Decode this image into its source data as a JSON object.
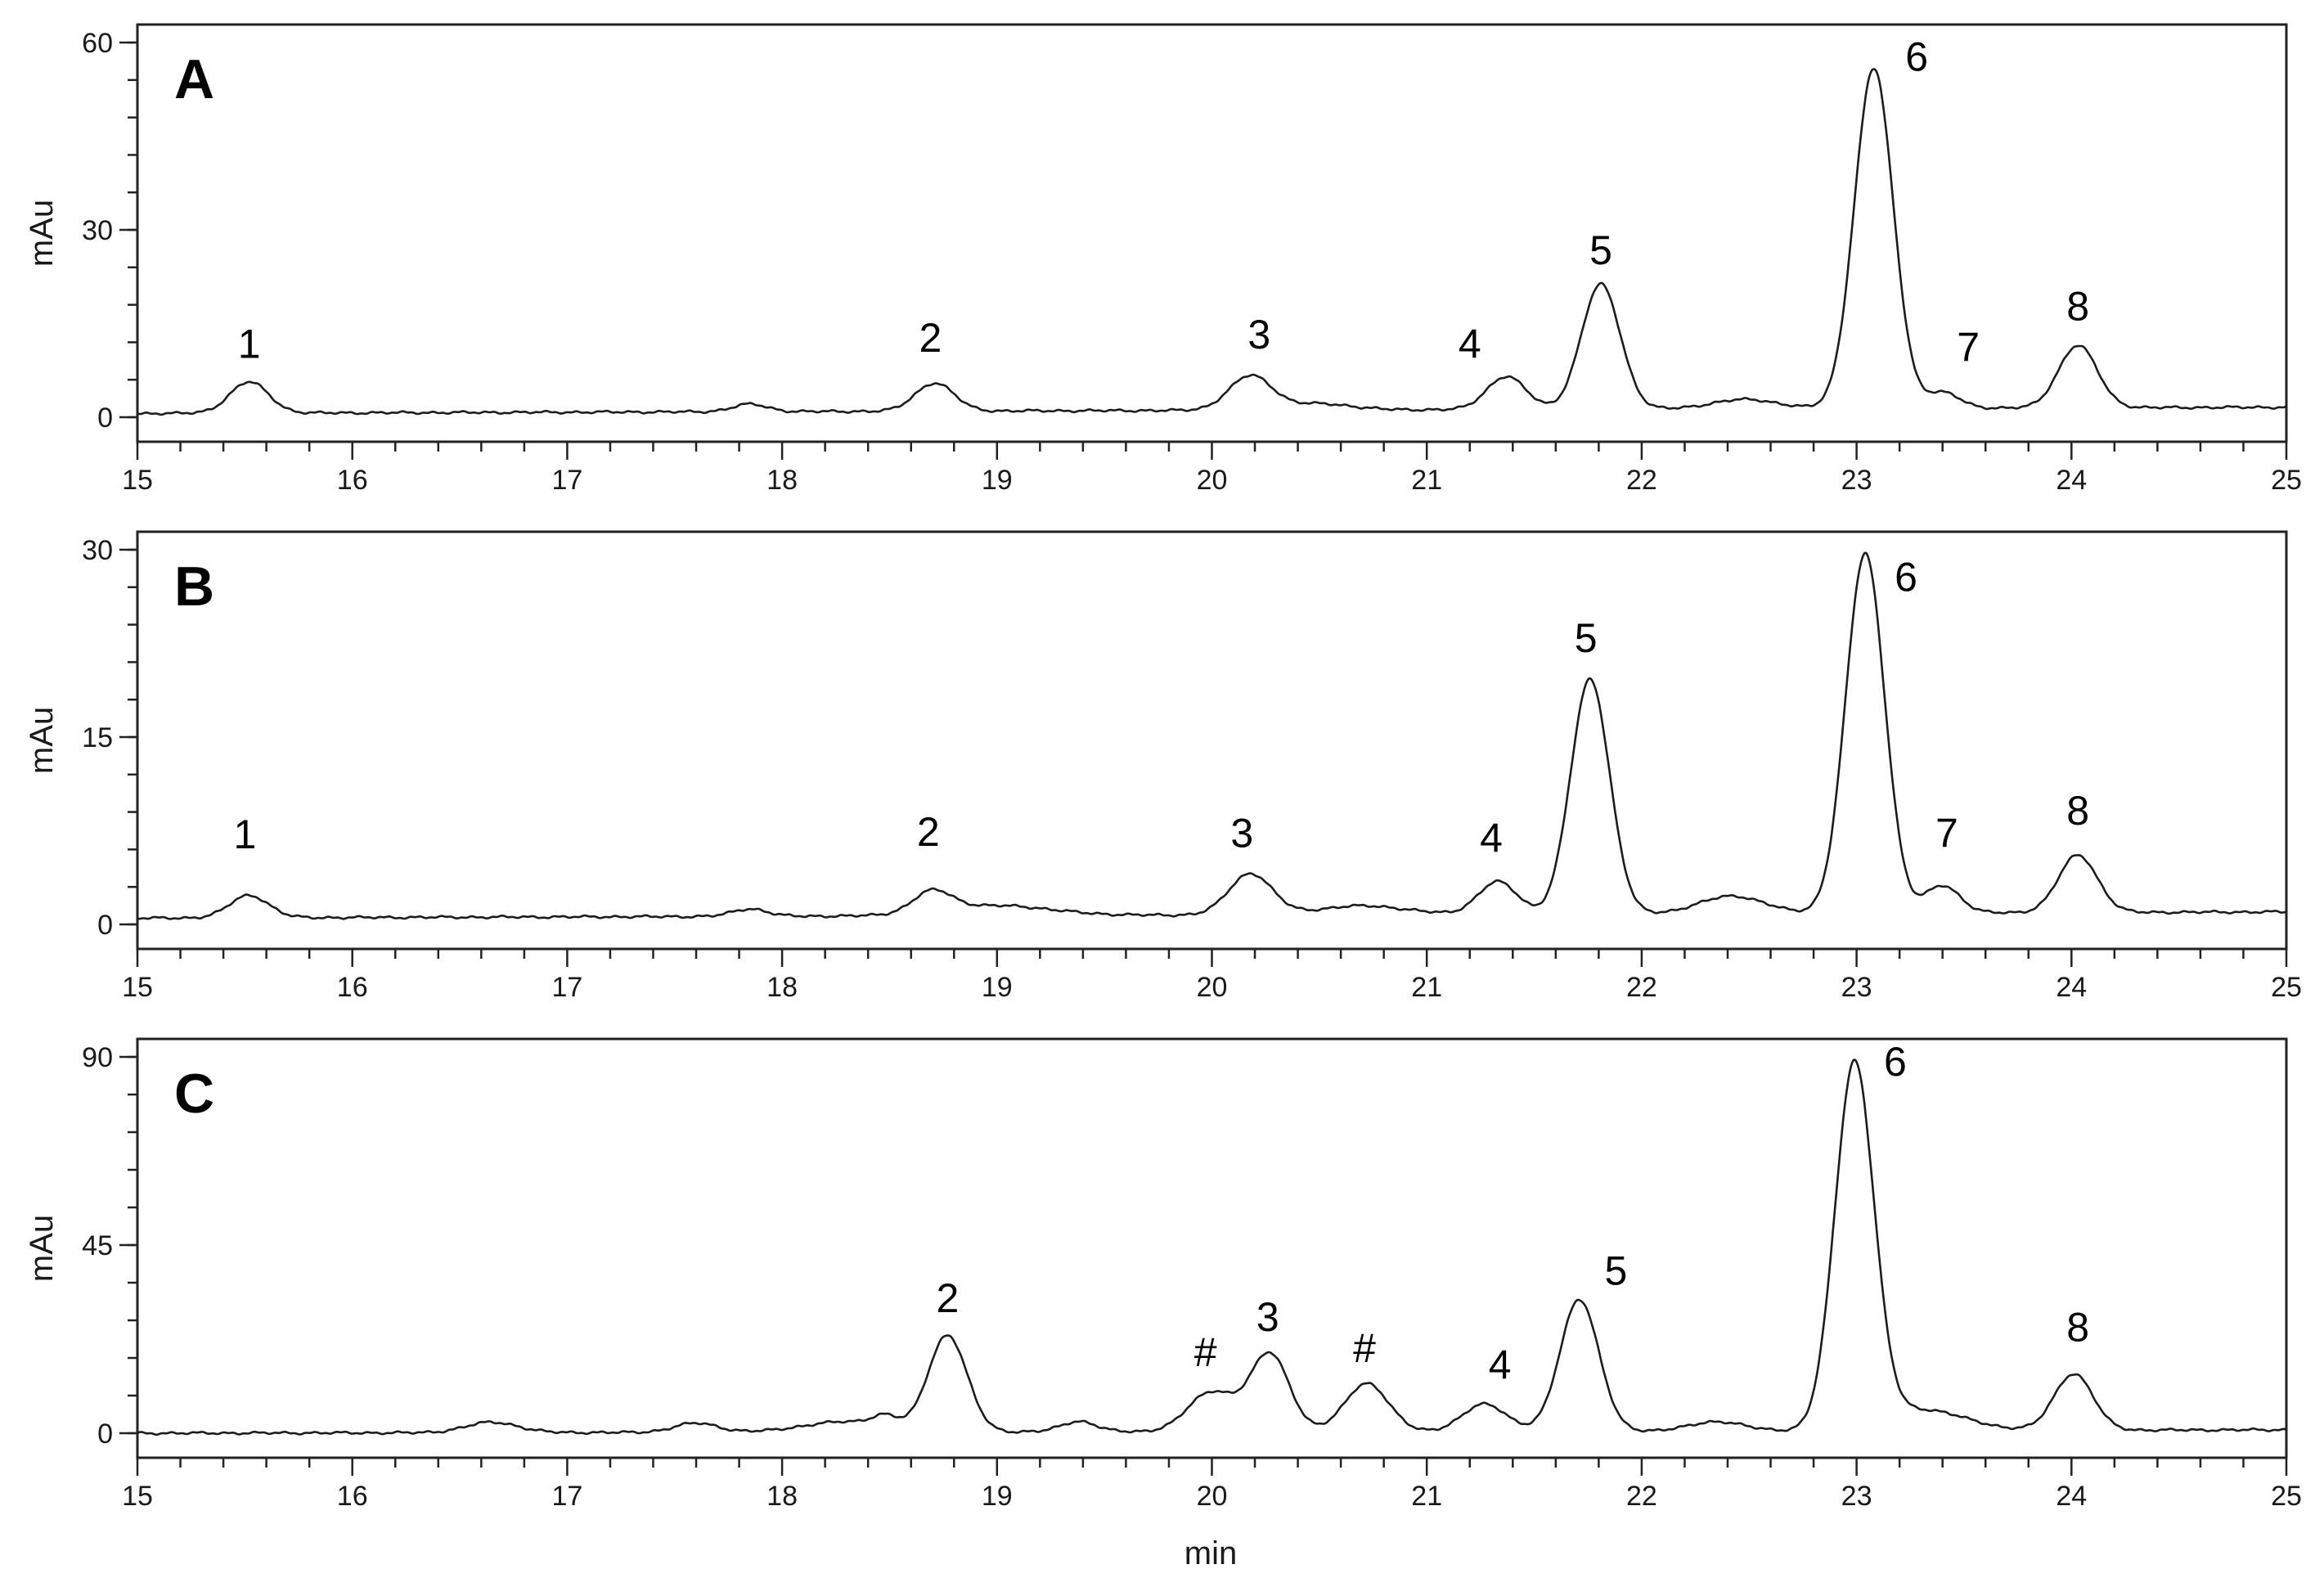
{
  "figure": {
    "x_axis_title": "min"
  },
  "chart_data": [
    {
      "type": "line",
      "panel": "A",
      "xlabel": "min",
      "ylabel": "mAu",
      "xlim": [
        15,
        25
      ],
      "ylim": [
        0,
        60
      ],
      "x_ticks": [
        15,
        16,
        17,
        18,
        19,
        20,
        21,
        22,
        23,
        24,
        25
      ],
      "y_ticks": [
        0,
        30,
        60
      ],
      "baseline": {
        "start": 0.6,
        "end": 1.6
      },
      "peaks": [
        {
          "label": "1",
          "x": 15.52,
          "height": 5.0,
          "width": 0.09
        },
        {
          "x": 17.85,
          "height": 1.2,
          "width": 0.08
        },
        {
          "label": "2",
          "x": 18.71,
          "height": 4.5,
          "width": 0.09
        },
        {
          "label": "3",
          "x": 20.18,
          "height": 5.5,
          "width": 0.1
        },
        {
          "x": 20.5,
          "height": 1.0,
          "width": 0.15
        },
        {
          "label": "4",
          "x": 21.37,
          "height": 5.3,
          "width": 0.09
        },
        {
          "label": "5",
          "x": 21.81,
          "height": 20.0,
          "width": 0.09
        },
        {
          "x": 22.48,
          "height": 1.5,
          "width": 0.15
        },
        {
          "label": "6",
          "x": 23.08,
          "height": 54.5,
          "width": 0.09
        },
        {
          "label": "7",
          "x": 23.4,
          "height": 2.5,
          "width": 0.08
        },
        {
          "label": "8",
          "x": 24.03,
          "height": 10.0,
          "width": 0.09
        }
      ],
      "annotations": [
        {
          "text": "1",
          "x": 15.52,
          "y": 9.5
        },
        {
          "text": "2",
          "x": 18.69,
          "y": 10.5
        },
        {
          "text": "3",
          "x": 20.22,
          "y": 11.0
        },
        {
          "text": "4",
          "x": 21.2,
          "y": 9.5
        },
        {
          "text": "5",
          "x": 21.81,
          "y": 24.5
        },
        {
          "text": "6",
          "x": 23.28,
          "y": 55.5
        },
        {
          "text": "7",
          "x": 23.52,
          "y": 9.0
        },
        {
          "text": "8",
          "x": 24.03,
          "y": 15.5
        }
      ]
    },
    {
      "type": "line",
      "panel": "B",
      "xlabel": "min",
      "ylabel": "mAu",
      "xlim": [
        15,
        25
      ],
      "ylim": [
        0,
        30
      ],
      "x_ticks": [
        15,
        16,
        17,
        18,
        19,
        20,
        21,
        22,
        23,
        24,
        25
      ],
      "y_ticks": [
        0,
        15,
        30
      ],
      "baseline": {
        "start": 0.5,
        "end": 1.0
      },
      "peaks": [
        {
          "label": "1",
          "x": 15.52,
          "height": 1.8,
          "width": 0.09
        },
        {
          "x": 17.85,
          "height": 0.6,
          "width": 0.08
        },
        {
          "label": "2",
          "x": 18.7,
          "height": 1.7,
          "width": 0.09
        },
        {
          "x": 19.0,
          "height": 0.8,
          "width": 0.25
        },
        {
          "label": "3",
          "x": 20.18,
          "height": 3.3,
          "width": 0.1
        },
        {
          "x": 20.7,
          "height": 0.7,
          "width": 0.2
        },
        {
          "label": "4",
          "x": 21.33,
          "height": 2.6,
          "width": 0.09
        },
        {
          "label": "5",
          "x": 21.76,
          "height": 18.8,
          "width": 0.09
        },
        {
          "x": 22.42,
          "height": 1.4,
          "width": 0.15
        },
        {
          "label": "6",
          "x": 23.04,
          "height": 28.8,
          "width": 0.09
        },
        {
          "label": "7",
          "x": 23.4,
          "height": 2.2,
          "width": 0.08
        },
        {
          "label": "8",
          "x": 24.03,
          "height": 4.6,
          "width": 0.09
        }
      ],
      "annotations": [
        {
          "text": "1",
          "x": 15.5,
          "y": 6.1
        },
        {
          "text": "2",
          "x": 18.68,
          "y": 6.3
        },
        {
          "text": "3",
          "x": 20.14,
          "y": 6.2
        },
        {
          "text": "4",
          "x": 21.3,
          "y": 5.8
        },
        {
          "text": "5",
          "x": 21.74,
          "y": 21.8
        },
        {
          "text": "6",
          "x": 23.23,
          "y": 26.7
        },
        {
          "text": "7",
          "x": 23.42,
          "y": 6.2
        },
        {
          "text": "8",
          "x": 24.03,
          "y": 8.0
        }
      ]
    },
    {
      "type": "line",
      "panel": "C",
      "xlabel": "min",
      "ylabel": "mAu",
      "xlim": [
        15,
        25
      ],
      "ylim": [
        0,
        90
      ],
      "x_ticks": [
        15,
        16,
        17,
        18,
        19,
        20,
        21,
        22,
        23,
        24,
        25
      ],
      "y_ticks": [
        0,
        45,
        90
      ],
      "baseline": {
        "start": 0.0,
        "end": 0.8
      },
      "peaks": [
        {
          "x": 16.65,
          "height": 2.5,
          "width": 0.12
        },
        {
          "x": 17.6,
          "height": 2.2,
          "width": 0.1
        },
        {
          "x": 18.3,
          "height": 2.5,
          "width": 0.2
        },
        {
          "x": 18.48,
          "height": 2.5,
          "width": 0.06
        },
        {
          "label": "2",
          "x": 18.77,
          "height": 23.0,
          "width": 0.09
        },
        {
          "x": 19.38,
          "height": 2.5,
          "width": 0.08
        },
        {
          "label": "#",
          "x": 20.0,
          "height": 9.5,
          "width": 0.11
        },
        {
          "label": "3",
          "x": 20.27,
          "height": 18.5,
          "width": 0.09
        },
        {
          "label": "#",
          "x": 20.72,
          "height": 11.5,
          "width": 0.1
        },
        {
          "label": "4",
          "x": 21.27,
          "height": 6.5,
          "width": 0.1
        },
        {
          "label": "5",
          "x": 21.71,
          "height": 31.5,
          "width": 0.09
        },
        {
          "x": 22.35,
          "height": 2.2,
          "width": 0.12
        },
        {
          "label": "6",
          "x": 22.99,
          "height": 87.0,
          "width": 0.09
        },
        {
          "x": 23.3,
          "height": 5.0,
          "width": 0.2
        },
        {
          "label": "8",
          "x": 24.01,
          "height": 13.5,
          "width": 0.09
        }
      ],
      "annotations": [
        {
          "text": "2",
          "x": 18.77,
          "y": 29.0
        },
        {
          "text": "#",
          "x": 19.97,
          "y": 16.0
        },
        {
          "text": "3",
          "x": 20.26,
          "y": 24.5
        },
        {
          "text": "#",
          "x": 20.71,
          "y": 17.0
        },
        {
          "text": "4",
          "x": 21.34,
          "y": 13.0
        },
        {
          "text": "5",
          "x": 21.88,
          "y": 35.5
        },
        {
          "text": "6",
          "x": 23.18,
          "y": 85.5
        },
        {
          "text": "8",
          "x": 24.03,
          "y": 22.0
        }
      ]
    }
  ]
}
